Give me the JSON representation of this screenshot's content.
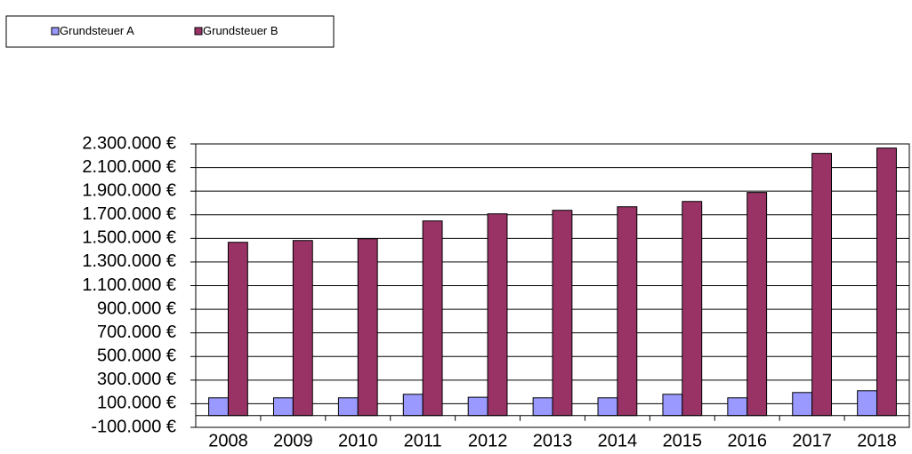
{
  "chart_data": {
    "type": "bar",
    "categories": [
      "2008",
      "2009",
      "2010",
      "2011",
      "2012",
      "2013",
      "2014",
      "2015",
      "2016",
      "2017",
      "2018"
    ],
    "series": [
      {
        "name": "Grundsteuer A",
        "color": "#9999ff",
        "values": [
          150000,
          150000,
          150000,
          180000,
          155000,
          150000,
          150000,
          180000,
          150000,
          195000,
          210000
        ]
      },
      {
        "name": "Grundsteuer B",
        "color": "#993366",
        "values": [
          1467000,
          1482000,
          1497000,
          1648000,
          1708000,
          1738000,
          1768000,
          1813000,
          1889000,
          2220000,
          2265000
        ]
      }
    ],
    "ylim": [
      -100000,
      2300000
    ],
    "yticks": [
      {
        "value": -100000,
        "label": "-100.000 €"
      },
      {
        "value": 100000,
        "label": "100.000 €"
      },
      {
        "value": 300000,
        "label": "300.000 €"
      },
      {
        "value": 500000,
        "label": "500.000 €"
      },
      {
        "value": 700000,
        "label": "700.000 €"
      },
      {
        "value": 900000,
        "label": "900.000 €"
      },
      {
        "value": 1100000,
        "label": "1.100.000 €"
      },
      {
        "value": 1300000,
        "label": "1.300.000 €"
      },
      {
        "value": 1500000,
        "label": "1.500.000 €"
      },
      {
        "value": 1700000,
        "label": "1.700.000 €"
      },
      {
        "value": 1900000,
        "label": "1.900.000 €"
      },
      {
        "value": 2100000,
        "label": "2.100.000 €"
      },
      {
        "value": 2300000,
        "label": "2.300.000 €"
      }
    ],
    "grid": true,
    "legend": "top-left"
  }
}
